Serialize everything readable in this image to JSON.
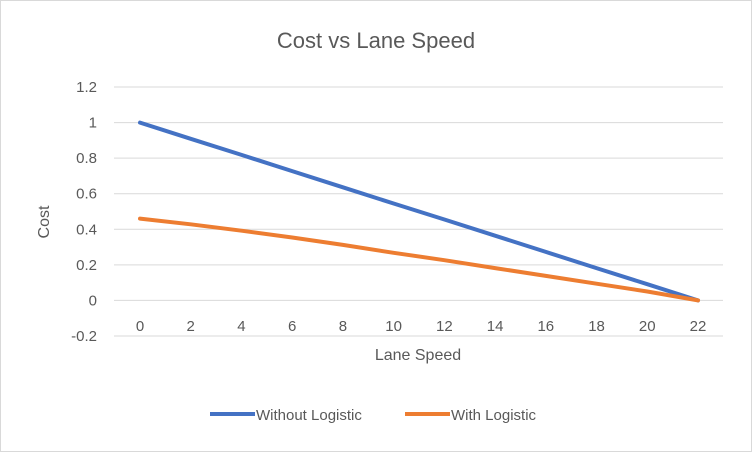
{
  "chart_data": {
    "type": "line",
    "title": "Cost vs Lane Speed",
    "xlabel": "Lane Speed",
    "ylabel": "Cost",
    "x": [
      0,
      2,
      4,
      6,
      8,
      10,
      12,
      14,
      16,
      18,
      20,
      22
    ],
    "x_ticks": [
      "0",
      "2",
      "4",
      "6",
      "8",
      "10",
      "12",
      "14",
      "16",
      "18",
      "20",
      "22"
    ],
    "y_ticks": [
      "1.2",
      "1",
      "0.8",
      "0.6",
      "0.4",
      "0.2",
      "0",
      "-0.2"
    ],
    "ylim": [
      -0.2,
      1.2
    ],
    "grid": true,
    "legend_position": "bottom",
    "series": [
      {
        "name": "Without Logistic",
        "color": "#4472C4",
        "values": [
          1.0,
          0.909,
          0.818,
          0.727,
          0.636,
          0.545,
          0.455,
          0.364,
          0.273,
          0.182,
          0.091,
          0.0
        ]
      },
      {
        "name": "With Logistic",
        "color": "#ED7D31",
        "values": [
          0.46,
          0.428,
          0.392,
          0.354,
          0.312,
          0.268,
          0.226,
          0.182,
          0.138,
          0.094,
          0.05,
          0.0
        ]
      }
    ]
  }
}
